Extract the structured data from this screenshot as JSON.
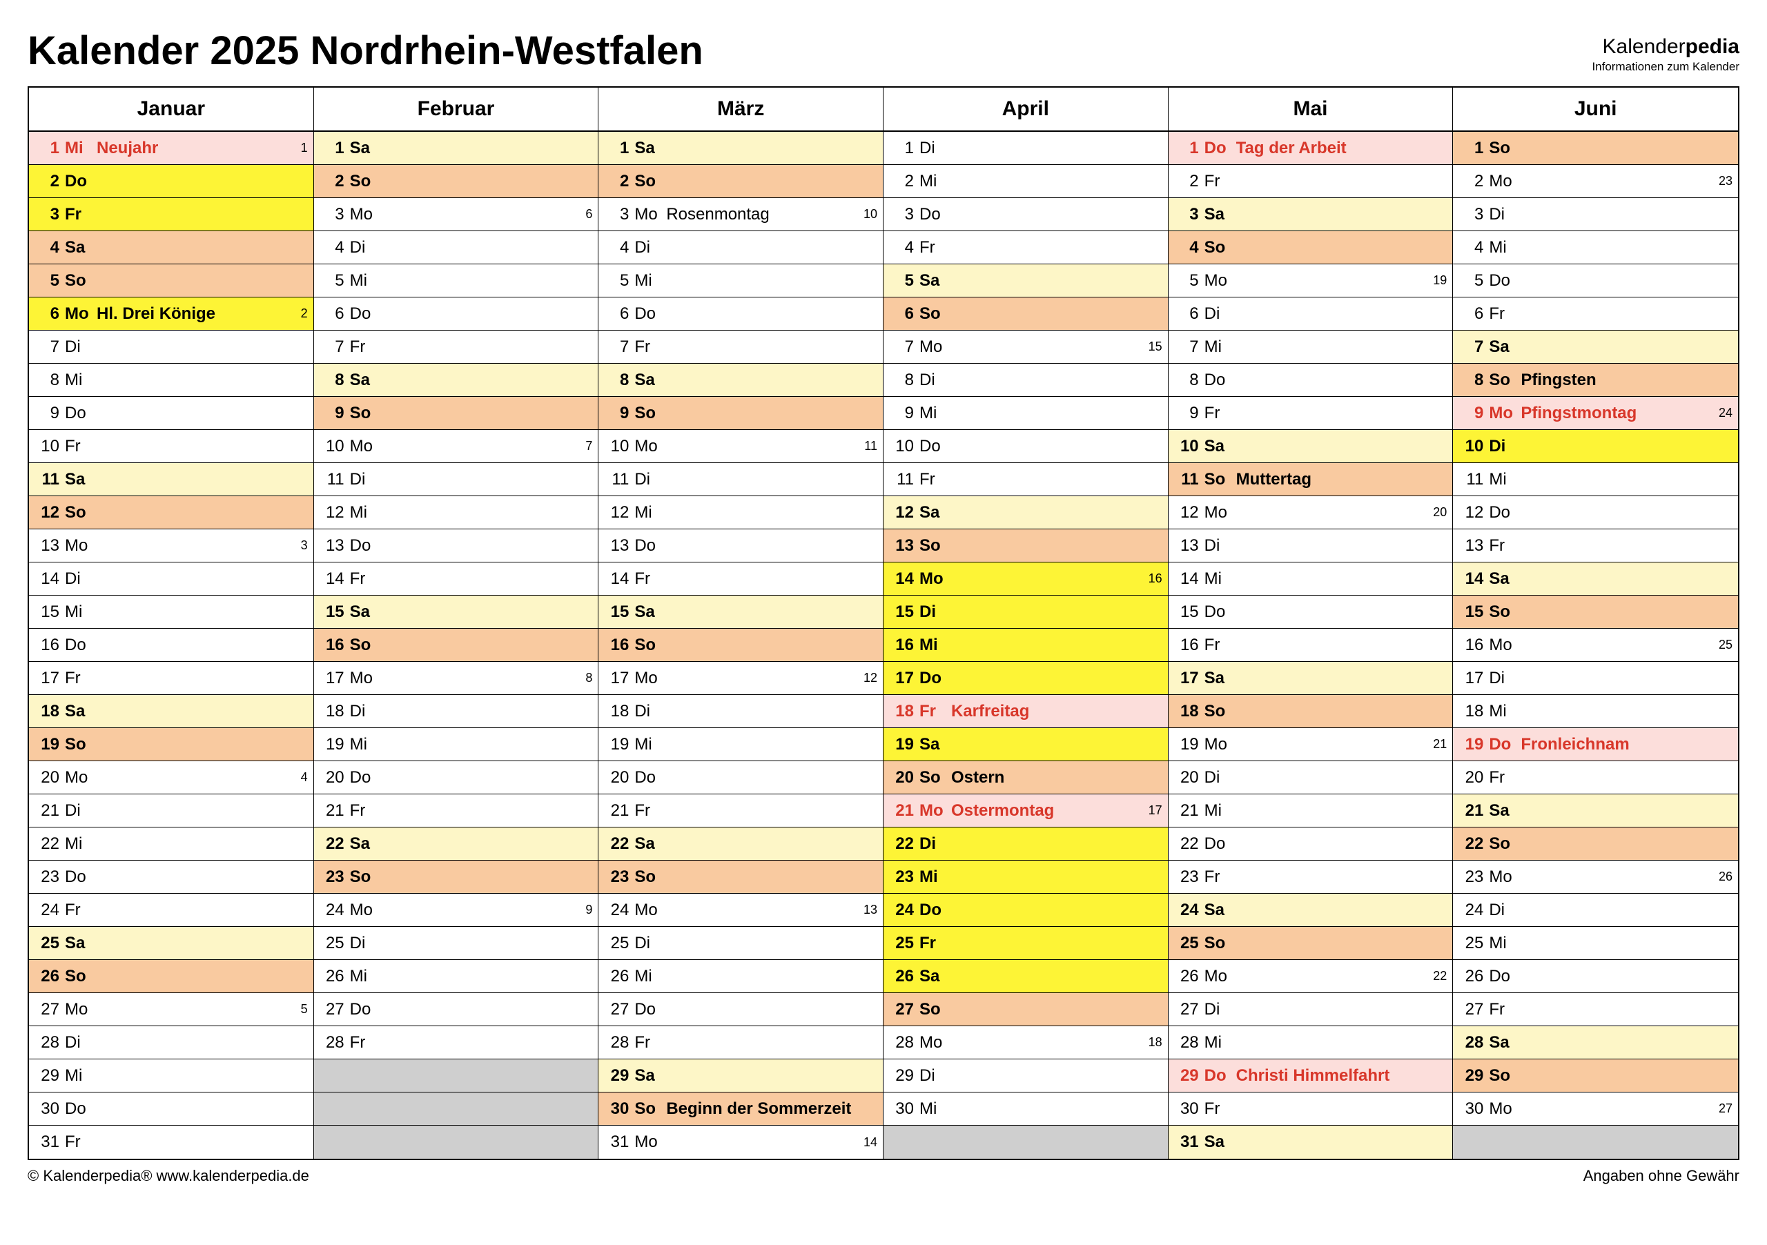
{
  "title": "Kalender 2025 Nordrhein-Westfalen",
  "brand_name_a": "Kalender",
  "brand_name_b": "pedia",
  "brand_sub": "Informationen zum Kalender",
  "footer_left": "© Kalenderpedia®   www.kalenderpedia.de",
  "footer_right": "Angaben ohne Gewähr",
  "colors": {
    "sat": "#fdf6c7",
    "sun": "#f9caa0",
    "holiday": "#fcdedb",
    "vacation": "#fdf436",
    "empty": "#cfcfcf",
    "red": "#d8372a",
    "black": "#000000"
  },
  "months": [
    {
      "name": "Januar",
      "days": [
        {
          "n": 1,
          "d": "Mi",
          "label": "Neujahr",
          "wk": "1",
          "bg": "holiday",
          "bold": true,
          "red": true
        },
        {
          "n": 2,
          "d": "Do",
          "bg": "vacation",
          "bold": true
        },
        {
          "n": 3,
          "d": "Fr",
          "bg": "vacation",
          "bold": true
        },
        {
          "n": 4,
          "d": "Sa",
          "bg": "sun",
          "bold": true
        },
        {
          "n": 5,
          "d": "So",
          "bg": "sun",
          "bold": true
        },
        {
          "n": 6,
          "d": "Mo",
          "label": "Hl. Drei Könige",
          "wk": "2",
          "bg": "vacation",
          "bold": true
        },
        {
          "n": 7,
          "d": "Di"
        },
        {
          "n": 8,
          "d": "Mi"
        },
        {
          "n": 9,
          "d": "Do"
        },
        {
          "n": 10,
          "d": "Fr"
        },
        {
          "n": 11,
          "d": "Sa",
          "bg": "sat",
          "bold": true
        },
        {
          "n": 12,
          "d": "So",
          "bg": "sun",
          "bold": true
        },
        {
          "n": 13,
          "d": "Mo",
          "wk": "3"
        },
        {
          "n": 14,
          "d": "Di"
        },
        {
          "n": 15,
          "d": "Mi"
        },
        {
          "n": 16,
          "d": "Do"
        },
        {
          "n": 17,
          "d": "Fr"
        },
        {
          "n": 18,
          "d": "Sa",
          "bg": "sat",
          "bold": true
        },
        {
          "n": 19,
          "d": "So",
          "bg": "sun",
          "bold": true
        },
        {
          "n": 20,
          "d": "Mo",
          "wk": "4"
        },
        {
          "n": 21,
          "d": "Di"
        },
        {
          "n": 22,
          "d": "Mi"
        },
        {
          "n": 23,
          "d": "Do"
        },
        {
          "n": 24,
          "d": "Fr"
        },
        {
          "n": 25,
          "d": "Sa",
          "bg": "sat",
          "bold": true
        },
        {
          "n": 26,
          "d": "So",
          "bg": "sun",
          "bold": true
        },
        {
          "n": 27,
          "d": "Mo",
          "wk": "5"
        },
        {
          "n": 28,
          "d": "Di"
        },
        {
          "n": 29,
          "d": "Mi"
        },
        {
          "n": 30,
          "d": "Do"
        },
        {
          "n": 31,
          "d": "Fr"
        }
      ]
    },
    {
      "name": "Februar",
      "days": [
        {
          "n": 1,
          "d": "Sa",
          "bg": "sat",
          "bold": true
        },
        {
          "n": 2,
          "d": "So",
          "bg": "sun",
          "bold": true
        },
        {
          "n": 3,
          "d": "Mo",
          "wk": "6"
        },
        {
          "n": 4,
          "d": "Di"
        },
        {
          "n": 5,
          "d": "Mi"
        },
        {
          "n": 6,
          "d": "Do"
        },
        {
          "n": 7,
          "d": "Fr"
        },
        {
          "n": 8,
          "d": "Sa",
          "bg": "sat",
          "bold": true
        },
        {
          "n": 9,
          "d": "So",
          "bg": "sun",
          "bold": true
        },
        {
          "n": 10,
          "d": "Mo",
          "wk": "7"
        },
        {
          "n": 11,
          "d": "Di"
        },
        {
          "n": 12,
          "d": "Mi"
        },
        {
          "n": 13,
          "d": "Do"
        },
        {
          "n": 14,
          "d": "Fr"
        },
        {
          "n": 15,
          "d": "Sa",
          "bg": "sat",
          "bold": true
        },
        {
          "n": 16,
          "d": "So",
          "bg": "sun",
          "bold": true
        },
        {
          "n": 17,
          "d": "Mo",
          "wk": "8"
        },
        {
          "n": 18,
          "d": "Di"
        },
        {
          "n": 19,
          "d": "Mi"
        },
        {
          "n": 20,
          "d": "Do"
        },
        {
          "n": 21,
          "d": "Fr"
        },
        {
          "n": 22,
          "d": "Sa",
          "bg": "sat",
          "bold": true
        },
        {
          "n": 23,
          "d": "So",
          "bg": "sun",
          "bold": true
        },
        {
          "n": 24,
          "d": "Mo",
          "wk": "9"
        },
        {
          "n": 25,
          "d": "Di"
        },
        {
          "n": 26,
          "d": "Mi"
        },
        {
          "n": 27,
          "d": "Do"
        },
        {
          "n": 28,
          "d": "Fr"
        },
        {
          "empty": true
        },
        {
          "empty": true
        },
        {
          "empty": true
        }
      ]
    },
    {
      "name": "März",
      "days": [
        {
          "n": 1,
          "d": "Sa",
          "bg": "sat",
          "bold": true
        },
        {
          "n": 2,
          "d": "So",
          "bg": "sun",
          "bold": true
        },
        {
          "n": 3,
          "d": "Mo",
          "label": "Rosenmontag",
          "wk": "10"
        },
        {
          "n": 4,
          "d": "Di"
        },
        {
          "n": 5,
          "d": "Mi"
        },
        {
          "n": 6,
          "d": "Do"
        },
        {
          "n": 7,
          "d": "Fr"
        },
        {
          "n": 8,
          "d": "Sa",
          "bg": "sat",
          "bold": true
        },
        {
          "n": 9,
          "d": "So",
          "bg": "sun",
          "bold": true
        },
        {
          "n": 10,
          "d": "Mo",
          "wk": "11"
        },
        {
          "n": 11,
          "d": "Di"
        },
        {
          "n": 12,
          "d": "Mi"
        },
        {
          "n": 13,
          "d": "Do"
        },
        {
          "n": 14,
          "d": "Fr"
        },
        {
          "n": 15,
          "d": "Sa",
          "bg": "sat",
          "bold": true
        },
        {
          "n": 16,
          "d": "So",
          "bg": "sun",
          "bold": true
        },
        {
          "n": 17,
          "d": "Mo",
          "wk": "12"
        },
        {
          "n": 18,
          "d": "Di"
        },
        {
          "n": 19,
          "d": "Mi"
        },
        {
          "n": 20,
          "d": "Do"
        },
        {
          "n": 21,
          "d": "Fr"
        },
        {
          "n": 22,
          "d": "Sa",
          "bg": "sat",
          "bold": true
        },
        {
          "n": 23,
          "d": "So",
          "bg": "sun",
          "bold": true
        },
        {
          "n": 24,
          "d": "Mo",
          "wk": "13"
        },
        {
          "n": 25,
          "d": "Di"
        },
        {
          "n": 26,
          "d": "Mi"
        },
        {
          "n": 27,
          "d": "Do"
        },
        {
          "n": 28,
          "d": "Fr"
        },
        {
          "n": 29,
          "d": "Sa",
          "bg": "sat",
          "bold": true
        },
        {
          "n": 30,
          "d": "So",
          "label": "Beginn der Sommerzeit",
          "bg": "sun",
          "bold": true
        },
        {
          "n": 31,
          "d": "Mo",
          "wk": "14"
        }
      ]
    },
    {
      "name": "April",
      "days": [
        {
          "n": 1,
          "d": "Di"
        },
        {
          "n": 2,
          "d": "Mi"
        },
        {
          "n": 3,
          "d": "Do"
        },
        {
          "n": 4,
          "d": "Fr"
        },
        {
          "n": 5,
          "d": "Sa",
          "bg": "sat",
          "bold": true
        },
        {
          "n": 6,
          "d": "So",
          "bg": "sun",
          "bold": true
        },
        {
          "n": 7,
          "d": "Mo",
          "wk": "15"
        },
        {
          "n": 8,
          "d": "Di"
        },
        {
          "n": 9,
          "d": "Mi"
        },
        {
          "n": 10,
          "d": "Do"
        },
        {
          "n": 11,
          "d": "Fr"
        },
        {
          "n": 12,
          "d": "Sa",
          "bg": "sat",
          "bold": true
        },
        {
          "n": 13,
          "d": "So",
          "bg": "sun",
          "bold": true
        },
        {
          "n": 14,
          "d": "Mo",
          "wk": "16",
          "bg": "vacation",
          "bold": true
        },
        {
          "n": 15,
          "d": "Di",
          "bg": "vacation",
          "bold": true
        },
        {
          "n": 16,
          "d": "Mi",
          "bg": "vacation",
          "bold": true
        },
        {
          "n": 17,
          "d": "Do",
          "bg": "vacation",
          "bold": true
        },
        {
          "n": 18,
          "d": "Fr",
          "label": "Karfreitag",
          "bg": "holiday",
          "bold": true,
          "red": true
        },
        {
          "n": 19,
          "d": "Sa",
          "bg": "vacation",
          "bold": true
        },
        {
          "n": 20,
          "d": "So",
          "label": "Ostern",
          "bg": "sun",
          "bold": true
        },
        {
          "n": 21,
          "d": "Mo",
          "label": "Ostermontag",
          "wk": "17",
          "bg": "holiday",
          "bold": true,
          "red": true
        },
        {
          "n": 22,
          "d": "Di",
          "bg": "vacation",
          "bold": true
        },
        {
          "n": 23,
          "d": "Mi",
          "bg": "vacation",
          "bold": true
        },
        {
          "n": 24,
          "d": "Do",
          "bg": "vacation",
          "bold": true
        },
        {
          "n": 25,
          "d": "Fr",
          "bg": "vacation",
          "bold": true
        },
        {
          "n": 26,
          "d": "Sa",
          "bg": "vacation",
          "bold": true
        },
        {
          "n": 27,
          "d": "So",
          "bg": "sun",
          "bold": true
        },
        {
          "n": 28,
          "d": "Mo",
          "wk": "18"
        },
        {
          "n": 29,
          "d": "Di"
        },
        {
          "n": 30,
          "d": "Mi"
        },
        {
          "empty": true
        }
      ]
    },
    {
      "name": "Mai",
      "days": [
        {
          "n": 1,
          "d": "Do",
          "label": "Tag der Arbeit",
          "bg": "holiday",
          "bold": true,
          "red": true
        },
        {
          "n": 2,
          "d": "Fr"
        },
        {
          "n": 3,
          "d": "Sa",
          "bg": "sat",
          "bold": true
        },
        {
          "n": 4,
          "d": "So",
          "bg": "sun",
          "bold": true
        },
        {
          "n": 5,
          "d": "Mo",
          "wk": "19"
        },
        {
          "n": 6,
          "d": "Di"
        },
        {
          "n": 7,
          "d": "Mi"
        },
        {
          "n": 8,
          "d": "Do"
        },
        {
          "n": 9,
          "d": "Fr"
        },
        {
          "n": 10,
          "d": "Sa",
          "bg": "sat",
          "bold": true
        },
        {
          "n": 11,
          "d": "So",
          "label": "Muttertag",
          "bg": "sun",
          "bold": true
        },
        {
          "n": 12,
          "d": "Mo",
          "wk": "20"
        },
        {
          "n": 13,
          "d": "Di"
        },
        {
          "n": 14,
          "d": "Mi"
        },
        {
          "n": 15,
          "d": "Do"
        },
        {
          "n": 16,
          "d": "Fr"
        },
        {
          "n": 17,
          "d": "Sa",
          "bg": "sat",
          "bold": true
        },
        {
          "n": 18,
          "d": "So",
          "bg": "sun",
          "bold": true
        },
        {
          "n": 19,
          "d": "Mo",
          "wk": "21"
        },
        {
          "n": 20,
          "d": "Di"
        },
        {
          "n": 21,
          "d": "Mi"
        },
        {
          "n": 22,
          "d": "Do"
        },
        {
          "n": 23,
          "d": "Fr"
        },
        {
          "n": 24,
          "d": "Sa",
          "bg": "sat",
          "bold": true
        },
        {
          "n": 25,
          "d": "So",
          "bg": "sun",
          "bold": true
        },
        {
          "n": 26,
          "d": "Mo",
          "wk": "22"
        },
        {
          "n": 27,
          "d": "Di"
        },
        {
          "n": 28,
          "d": "Mi"
        },
        {
          "n": 29,
          "d": "Do",
          "label": "Christi Himmelfahrt",
          "bg": "holiday",
          "bold": true,
          "red": true
        },
        {
          "n": 30,
          "d": "Fr"
        },
        {
          "n": 31,
          "d": "Sa",
          "bg": "sat",
          "bold": true
        }
      ]
    },
    {
      "name": "Juni",
      "days": [
        {
          "n": 1,
          "d": "So",
          "bg": "sun",
          "bold": true
        },
        {
          "n": 2,
          "d": "Mo",
          "wk": "23"
        },
        {
          "n": 3,
          "d": "Di"
        },
        {
          "n": 4,
          "d": "Mi"
        },
        {
          "n": 5,
          "d": "Do"
        },
        {
          "n": 6,
          "d": "Fr"
        },
        {
          "n": 7,
          "d": "Sa",
          "bg": "sat",
          "bold": true
        },
        {
          "n": 8,
          "d": "So",
          "label": "Pfingsten",
          "bg": "sun",
          "bold": true
        },
        {
          "n": 9,
          "d": "Mo",
          "label": "Pfingstmontag",
          "wk": "24",
          "bg": "holiday",
          "bold": true,
          "red": true
        },
        {
          "n": 10,
          "d": "Di",
          "bg": "vacation",
          "bold": true
        },
        {
          "n": 11,
          "d": "Mi"
        },
        {
          "n": 12,
          "d": "Do"
        },
        {
          "n": 13,
          "d": "Fr"
        },
        {
          "n": 14,
          "d": "Sa",
          "bg": "sat",
          "bold": true
        },
        {
          "n": 15,
          "d": "So",
          "bg": "sun",
          "bold": true
        },
        {
          "n": 16,
          "d": "Mo",
          "wk": "25"
        },
        {
          "n": 17,
          "d": "Di"
        },
        {
          "n": 18,
          "d": "Mi"
        },
        {
          "n": 19,
          "d": "Do",
          "label": "Fronleichnam",
          "bg": "holiday",
          "bold": true,
          "red": true
        },
        {
          "n": 20,
          "d": "Fr"
        },
        {
          "n": 21,
          "d": "Sa",
          "bg": "sat",
          "bold": true
        },
        {
          "n": 22,
          "d": "So",
          "bg": "sun",
          "bold": true
        },
        {
          "n": 23,
          "d": "Mo",
          "wk": "26"
        },
        {
          "n": 24,
          "d": "Di"
        },
        {
          "n": 25,
          "d": "Mi"
        },
        {
          "n": 26,
          "d": "Do"
        },
        {
          "n": 27,
          "d": "Fr"
        },
        {
          "n": 28,
          "d": "Sa",
          "bg": "sat",
          "bold": true
        },
        {
          "n": 29,
          "d": "So",
          "bg": "sun",
          "bold": true
        },
        {
          "n": 30,
          "d": "Mo",
          "wk": "27"
        },
        {
          "empty": true
        }
      ]
    }
  ]
}
